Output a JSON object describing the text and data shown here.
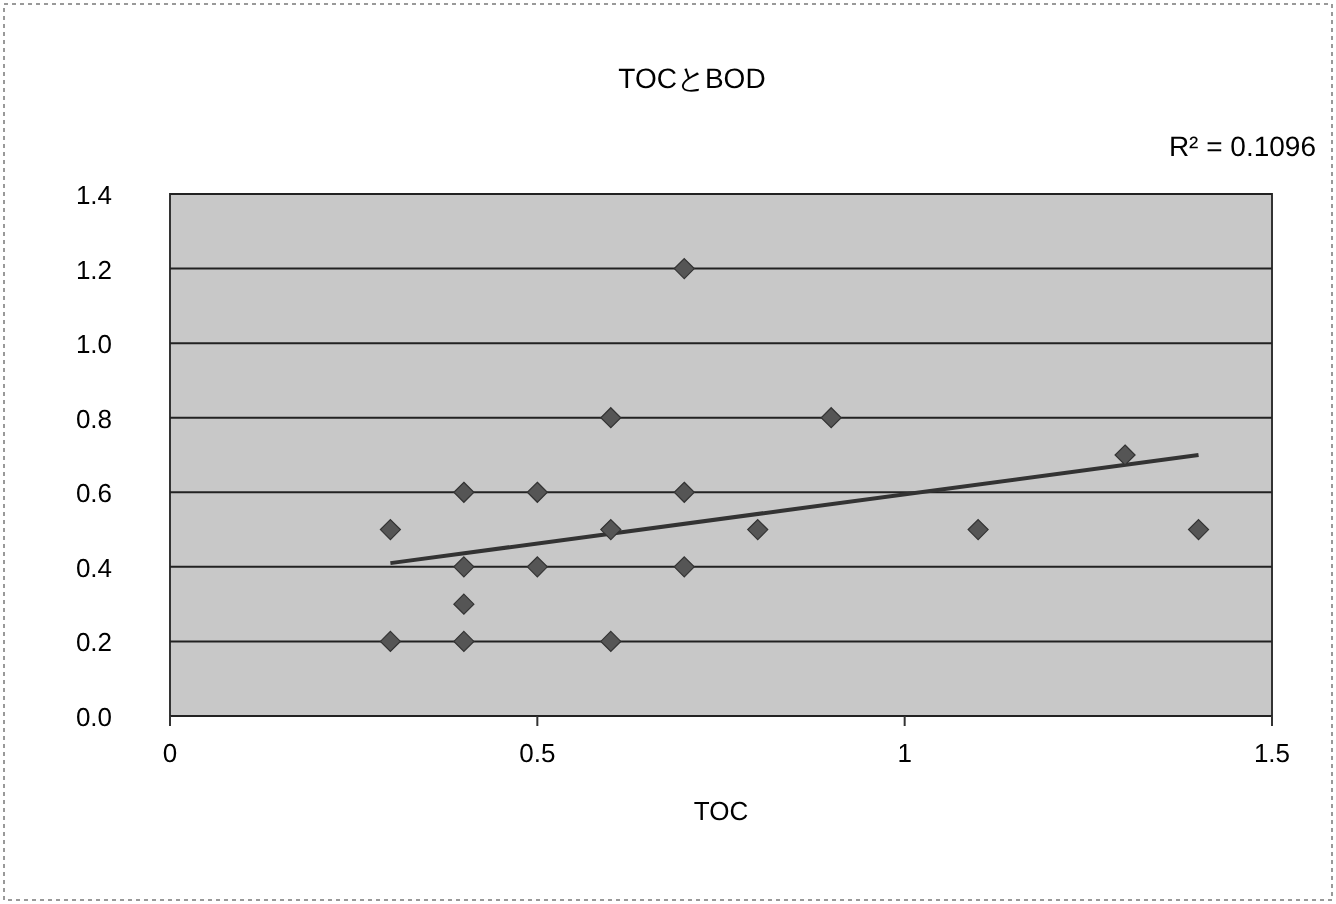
{
  "chart_data": {
    "type": "scatter",
    "title": "TOCとBOD",
    "xlabel": "TOC",
    "annotations": [
      "R² = 0.1096"
    ],
    "xlim": [
      0,
      1.5
    ],
    "xticks": [
      0,
      0.5,
      1,
      1.5
    ],
    "ylim": [
      0,
      1.4
    ],
    "yticks": [
      {
        "value": 0,
        "label": "0.0"
      },
      {
        "value": 0.2,
        "label": "0.2"
      },
      {
        "value": 0.4,
        "label": "0.4"
      },
      {
        "value": 0.6,
        "label": "0.6"
      },
      {
        "value": 0.8,
        "label": "0.8"
      },
      {
        "value": 1.0,
        "label": "1.0"
      },
      {
        "value": 1.2,
        "label": "1.2"
      },
      {
        "value": 1.4,
        "label": "1.4"
      }
    ],
    "grid": "y",
    "marker": "diamond",
    "series": [
      {
        "color": "#555555",
        "x": [
          0.3,
          0.3,
          0.4,
          0.4,
          0.4,
          0.4,
          0.5,
          0.5,
          0.6,
          0.6,
          0.6,
          0.7,
          0.7,
          0.7,
          0.8,
          0.9,
          1.1,
          1.3,
          1.4
        ],
        "values": [
          0.5,
          0.2,
          0.6,
          0.4,
          0.3,
          0.2,
          0.6,
          0.4,
          0.8,
          0.5,
          0.2,
          1.2,
          0.6,
          0.4,
          0.5,
          0.8,
          0.5,
          0.7,
          0.5
        ]
      },
      {
        "type": "line",
        "color": "#333333",
        "marker": "none",
        "x": [
          0.3,
          1.4
        ],
        "values": [
          0.41,
          0.7
        ]
      }
    ]
  }
}
